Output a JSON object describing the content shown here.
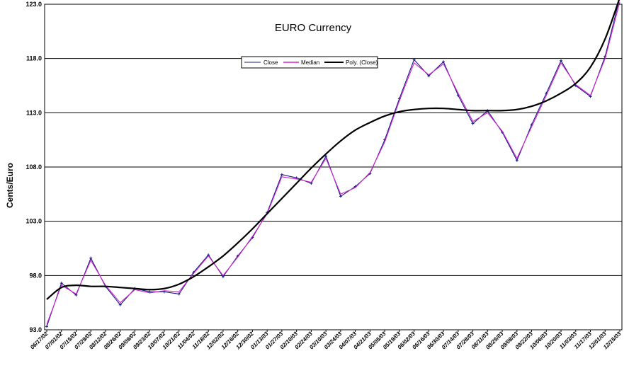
{
  "chart_data": {
    "type": "line",
    "title": "EURO Currency",
    "ylabel": "Cents/Euro",
    "xlabel": "",
    "ylim": [
      93.0,
      123.0
    ],
    "yticks": [
      "93.0",
      "98.0",
      "103.0",
      "108.0",
      "113.0",
      "118.0",
      "123.0"
    ],
    "grid": "horizontal",
    "legend_position": "top-center",
    "x_tick_labels": [
      "06/17/02",
      "07/01/02",
      "07/15/02",
      "07/29/02",
      "08/12/02",
      "08/26/02",
      "09/09/02",
      "09/23/02",
      "10/07/02",
      "10/21/02",
      "11/04/02",
      "11/18/02",
      "12/02/02",
      "12/16/02",
      "12/30/02",
      "01/13/03",
      "01/27/03",
      "02/10/03",
      "02/24/03",
      "03/10/03",
      "03/24/03",
      "04/07/03",
      "04/21/03",
      "05/05/03",
      "05/19/03",
      "06/02/03",
      "06/16/03",
      "06/30/03",
      "07/14/03",
      "07/28/03",
      "08/11/03",
      "08/25/03",
      "09/08/03",
      "09/22/03",
      "10/06/03",
      "10/20/03",
      "11/03/03",
      "11/17/03",
      "12/01/03",
      "12/15/03"
    ],
    "x": [
      "06/17/02",
      "07/01/02",
      "07/15/02",
      "07/29/02",
      "08/12/02",
      "08/26/02",
      "09/09/02",
      "09/23/02",
      "10/07/02",
      "10/21/02",
      "11/04/02",
      "11/18/02",
      "12/02/02",
      "12/16/02",
      "12/30/02",
      "01/13/03",
      "01/27/03",
      "02/10/03",
      "02/24/03",
      "03/10/03",
      "03/24/03",
      "04/07/03",
      "04/21/03",
      "05/05/03",
      "05/19/03",
      "06/02/03",
      "06/16/03",
      "06/30/03",
      "07/14/03",
      "07/28/03",
      "08/11/03",
      "08/25/03",
      "09/08/03",
      "09/22/03",
      "10/06/03",
      "10/20/03",
      "11/03/03",
      "11/17/03",
      "12/01/03",
      "12/15/03"
    ],
    "series": [
      {
        "name": "Close",
        "color": "#1a1a80",
        "marker": "plus",
        "values": [
          93.3,
          97.3,
          96.2,
          99.6,
          97.0,
          95.3,
          96.8,
          96.5,
          96.5,
          96.3,
          98.3,
          99.9,
          97.9,
          99.8,
          101.5,
          103.8,
          107.3,
          107.0,
          106.5,
          109.0,
          105.3,
          106.2,
          107.4,
          110.5,
          114.3,
          117.9,
          116.4,
          117.7,
          114.6,
          112.0,
          113.2,
          111.2,
          108.6,
          111.9,
          114.8,
          117.8,
          115.5,
          114.5,
          118.2,
          123.6
        ]
      },
      {
        "name": "Median",
        "color": "#d020d0",
        "marker": "none",
        "values": [
          93.5,
          97.1,
          96.3,
          99.4,
          97.1,
          95.5,
          96.7,
          96.4,
          96.6,
          96.5,
          98.2,
          99.8,
          98.0,
          99.7,
          101.6,
          103.7,
          107.1,
          106.9,
          106.6,
          108.8,
          105.5,
          106.1,
          107.5,
          110.3,
          114.1,
          117.6,
          116.5,
          117.5,
          114.8,
          112.2,
          113.0,
          111.3,
          108.8,
          111.7,
          114.6,
          117.6,
          115.6,
          114.6,
          118.0,
          123.2
        ]
      },
      {
        "name": "Poly. (Close)",
        "color": "#000000",
        "marker": "none",
        "trend": true,
        "values": [
          95.8,
          96.9,
          97.1,
          97.0,
          97.0,
          96.9,
          96.8,
          96.7,
          96.8,
          97.2,
          97.9,
          98.8,
          99.8,
          101.0,
          102.3,
          103.7,
          105.1,
          106.5,
          107.9,
          109.2,
          110.4,
          111.4,
          112.1,
          112.7,
          113.1,
          113.3,
          113.4,
          113.4,
          113.3,
          113.2,
          113.2,
          113.2,
          113.3,
          113.6,
          114.1,
          114.8,
          115.7,
          117.2,
          119.8,
          123.6
        ]
      }
    ]
  }
}
